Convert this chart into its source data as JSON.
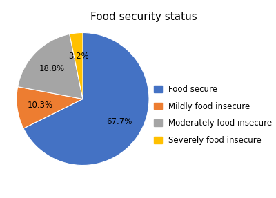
{
  "title": "Food security status",
  "labels": [
    "Food secure",
    "Mildly food insecure",
    "Moderately food insecure",
    "Severely food insecure"
  ],
  "values": [
    67.6,
    10.3,
    18.8,
    3.2
  ],
  "colors": [
    "#4472C4",
    "#ED7D31",
    "#A5A5A5",
    "#FFC000"
  ],
  "startangle": 90,
  "title_fontsize": 11,
  "legend_fontsize": 8.5,
  "label_fontsize": 8.5,
  "background_color": "#ffffff"
}
